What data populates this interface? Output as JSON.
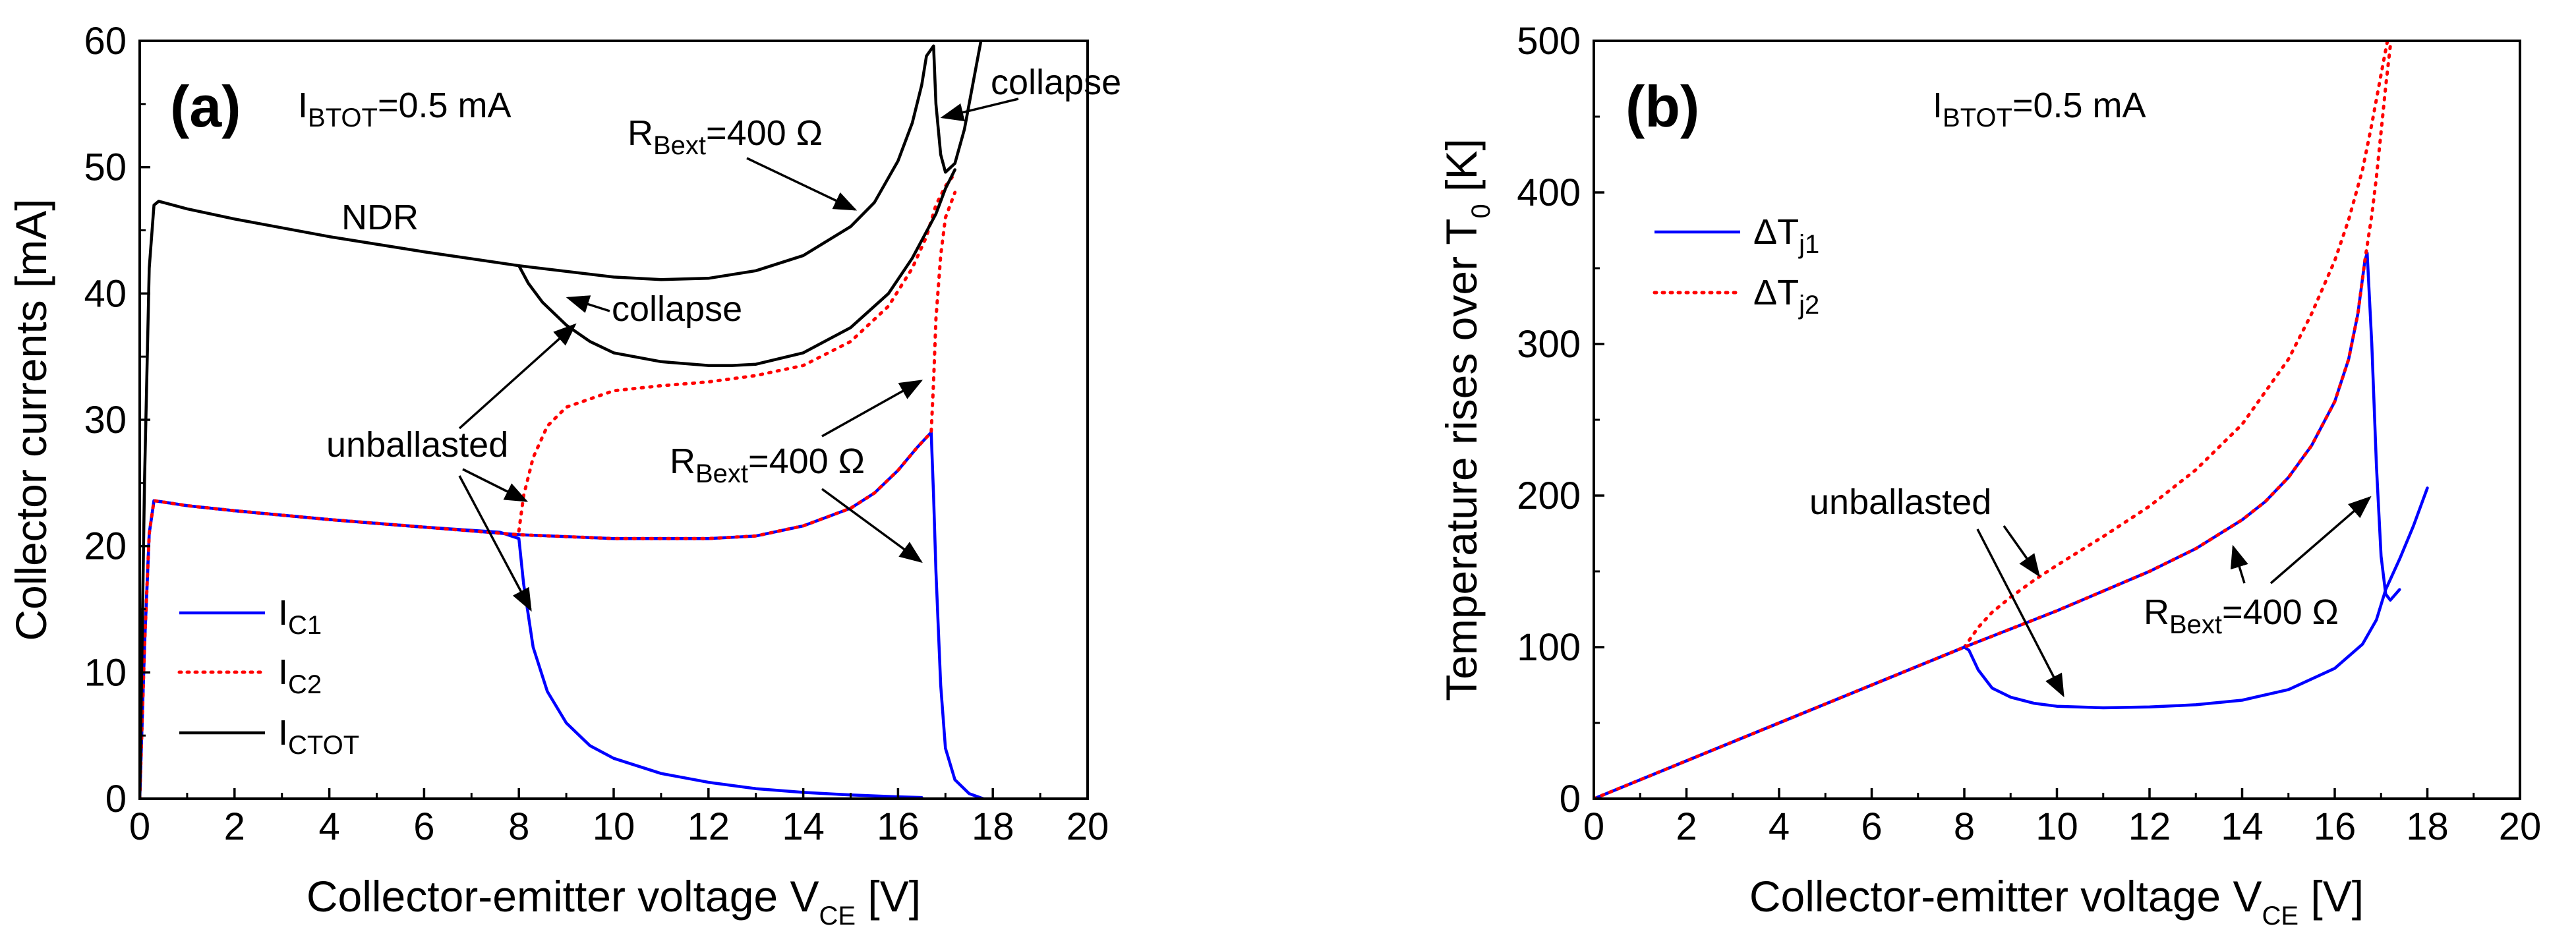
{
  "chart_data": [
    {
      "type": "line",
      "panel_label": "(a)",
      "xlabel_main": "Collector-emitter voltage V",
      "xlabel_sub": "CE",
      "xlabel_unit": " [V]",
      "ylabel": "Collector currents [mA]",
      "xlim": [
        0,
        20
      ],
      "ylim": [
        0,
        60
      ],
      "xticks": [
        "0",
        "2",
        "4",
        "6",
        "8",
        "10",
        "12",
        "14",
        "16",
        "18",
        "20"
      ],
      "yticks": [
        "0",
        "10",
        "20",
        "30",
        "40",
        "50",
        "60"
      ],
      "condition": {
        "main": "I",
        "sub": "BTOT",
        "rest": "=0.5 mA"
      },
      "legend": [
        {
          "main": "I",
          "sub": "C1"
        },
        {
          "main": "I",
          "sub": "C2"
        },
        {
          "main": "I",
          "sub": "CTOT"
        }
      ],
      "annotations": {
        "ndr": "NDR",
        "collapse_top": "collapse",
        "collapse_mid": "collapse",
        "unballasted": "unballasted",
        "rbext_top": {
          "main": "R",
          "sub": "Bext",
          "rest": "=400 Ω"
        },
        "rbext_mid": {
          "main": "R",
          "sub": "Bext",
          "rest": "=400 Ω"
        }
      },
      "series": [
        {
          "name": "IC1 unballasted",
          "color": "#0000ff",
          "style": "solid",
          "x": [
            0,
            0.1,
            0.2,
            0.3,
            1,
            2,
            4,
            6,
            7.6,
            8.0,
            8.1,
            8.3,
            8.6,
            9,
            9.5,
            10,
            11,
            12,
            13,
            14,
            15,
            16,
            16.5
          ],
          "y": [
            0,
            12,
            21,
            23.6,
            23.2,
            22.8,
            22.1,
            21.5,
            21.1,
            20.6,
            17,
            12,
            8.5,
            6,
            4.2,
            3.2,
            2.0,
            1.3,
            0.8,
            0.5,
            0.3,
            0.15,
            0.1
          ]
        },
        {
          "name": "IC2 unballasted",
          "color": "#ff0000",
          "style": "dotted",
          "x": [
            8.0,
            8.1,
            8.3,
            8.6,
            9,
            10,
            11,
            12,
            13,
            14,
            15,
            15.8,
            16.3,
            16.6,
            16.8,
            17.0,
            17.2
          ],
          "y": [
            21.2,
            24,
            27,
            29.5,
            31,
            32.3,
            32.7,
            33,
            33.5,
            34.3,
            36.2,
            39,
            42,
            44.5,
            47,
            48.5,
            49.5
          ]
        },
        {
          "name": "IC1 RBext=400",
          "color": "#0000ff",
          "style": "solid",
          "x": [
            0,
            0.1,
            0.2,
            0.3,
            1,
            2,
            4,
            6,
            8,
            10,
            12,
            13,
            14,
            15,
            15.5,
            16,
            16.4,
            16.6,
            16.7,
            16.75,
            16.8,
            16.9,
            17.0,
            17.2,
            17.5,
            17.8
          ],
          "y": [
            0,
            12,
            21,
            23.6,
            23.2,
            22.8,
            22.1,
            21.5,
            20.9,
            20.6,
            20.6,
            20.8,
            21.6,
            23,
            24.2,
            26,
            27.8,
            28.6,
            29,
            24,
            18,
            9,
            4,
            1.5,
            0.4,
            0
          ]
        },
        {
          "name": "IC2 RBext=400",
          "color": "#ff0000",
          "style": "dotted",
          "x": [
            0,
            0.1,
            0.2,
            0.3,
            1,
            2,
            4,
            6,
            8,
            10,
            12,
            13,
            14,
            15,
            15.5,
            16,
            16.4,
            16.6,
            16.7,
            16.75,
            16.8,
            16.9,
            17.0,
            17.2
          ],
          "y": [
            0,
            12,
            21,
            23.6,
            23.2,
            22.8,
            22.1,
            21.5,
            20.9,
            20.6,
            20.6,
            20.8,
            21.6,
            23,
            24.2,
            26,
            27.8,
            28.6,
            29,
            33,
            38,
            43,
            46,
            48
          ]
        },
        {
          "name": "ICTOT RBext=400",
          "color": "#000000",
          "style": "solid",
          "x": [
            0,
            0.1,
            0.2,
            0.3,
            0.4,
            1,
            2,
            4,
            6,
            8,
            10,
            11,
            12,
            13,
            14,
            15,
            15.5,
            16,
            16.3,
            16.5,
            16.6,
            16.75,
            16.8,
            16.9,
            17.0,
            17.2,
            17.4,
            17.6,
            17.8
          ],
          "y": [
            0,
            25,
            42,
            47,
            47.3,
            46.7,
            45.9,
            44.5,
            43.3,
            42.2,
            41.3,
            41.1,
            41.2,
            41.8,
            43,
            45.3,
            47.2,
            50.5,
            53.5,
            56.5,
            58.8,
            59.6,
            55,
            51,
            49.6,
            50.3,
            53,
            57,
            61
          ]
        },
        {
          "name": "ICTOT unballasted",
          "color": "#000000",
          "style": "solid",
          "x": [
            8.0,
            8.2,
            8.5,
            9,
            9.5,
            10,
            11,
            12,
            12.5,
            13,
            14,
            15,
            15.8,
            16.3,
            16.8,
            17.0,
            17.2
          ],
          "y": [
            42.2,
            40.8,
            39.3,
            37.5,
            36.2,
            35.3,
            34.6,
            34.3,
            34.3,
            34.4,
            35.3,
            37.3,
            40,
            42.8,
            46.3,
            48.3,
            49.8
          ]
        }
      ]
    },
    {
      "type": "line",
      "panel_label": "(b)",
      "xlabel_main": "Collector-emitter voltage V",
      "xlabel_sub": "CE",
      "xlabel_unit": " [V]",
      "ylabel_main": "Temperature rises over T",
      "ylabel_sub": "0",
      "ylabel_unit": " [K]",
      "xlim": [
        0,
        20
      ],
      "ylim": [
        0,
        500
      ],
      "xticks": [
        "0",
        "2",
        "4",
        "6",
        "8",
        "10",
        "12",
        "14",
        "16",
        "18",
        "20"
      ],
      "yticks": [
        "0",
        "100",
        "200",
        "300",
        "400",
        "500"
      ],
      "condition": {
        "main": "I",
        "sub": "BTOT",
        "rest": "=0.5 mA"
      },
      "legend": [
        {
          "main": "ΔT",
          "sub": "j1"
        },
        {
          "main": "ΔT",
          "sub": "j2"
        }
      ],
      "annotations": {
        "unballasted": "unballasted",
        "rbext": {
          "main": "R",
          "sub": "Bext",
          "rest": "=400 Ω"
        }
      },
      "series": [
        {
          "name": "dTj1 unballasted",
          "color": "#0000ff",
          "style": "solid",
          "x": [
            0,
            2,
            4,
            6,
            8.0,
            8.1,
            8.3,
            8.6,
            9,
            9.5,
            10,
            11,
            12,
            13,
            14,
            15,
            16,
            16.6,
            16.9,
            17.1,
            17.4,
            17.7,
            18.0
          ],
          "y": [
            0,
            25,
            50,
            75,
            100,
            98,
            85,
            73,
            67,
            63,
            61,
            60,
            60.5,
            62,
            65,
            72,
            86,
            102,
            118,
            138,
            158,
            180,
            205
          ]
        },
        {
          "name": "dTj2 unballasted",
          "color": "#ff0000",
          "style": "dotted",
          "x": [
            8.0,
            8.3,
            8.6,
            9,
            9.5,
            10,
            11,
            12,
            13,
            14,
            15,
            15.5,
            16,
            16.3,
            16.6,
            16.8,
            17.0,
            17.2
          ],
          "y": [
            100,
            113,
            123,
            133,
            144,
            154,
            173,
            193,
            217,
            247,
            290,
            320,
            355,
            382,
            415,
            445,
            478,
            510
          ]
        },
        {
          "name": "dTj1 RBext=400",
          "color": "#0000ff",
          "style": "solid",
          "x": [
            0,
            2,
            4,
            6,
            8,
            10,
            12,
            13,
            14,
            14.5,
            15,
            15.5,
            16,
            16.3,
            16.5,
            16.65,
            16.7,
            16.8,
            16.9,
            17.0,
            17.1,
            17.2,
            17.4
          ],
          "y": [
            0,
            25,
            50,
            75,
            100,
            124,
            150,
            165,
            184,
            196,
            212,
            233,
            262,
            290,
            320,
            355,
            360,
            300,
            220,
            160,
            135,
            131,
            138
          ]
        },
        {
          "name": "dTj2 RBext=400",
          "color": "#ff0000",
          "style": "dotted",
          "x": [
            0,
            2,
            4,
            6,
            8,
            10,
            12,
            13,
            14,
            14.5,
            15,
            15.5,
            16,
            16.3,
            16.5,
            16.65,
            16.7,
            16.8,
            16.9,
            17.0,
            17.1,
            17.25
          ],
          "y": [
            0,
            25,
            50,
            75,
            100,
            124,
            150,
            165,
            184,
            196,
            212,
            233,
            262,
            290,
            320,
            355,
            365,
            385,
            410,
            440,
            470,
            510
          ]
        }
      ]
    }
  ]
}
